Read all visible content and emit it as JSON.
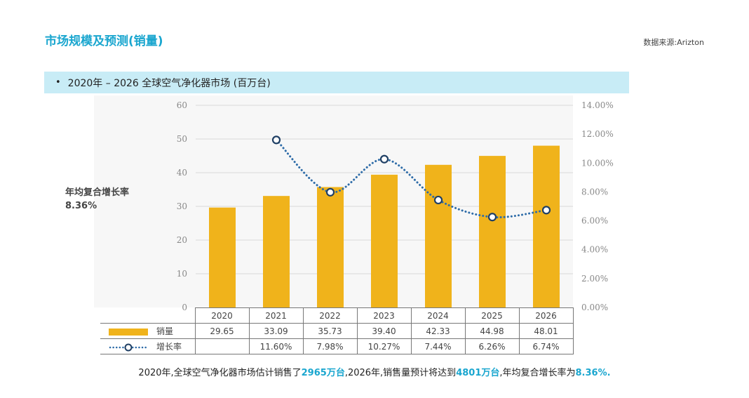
{
  "header": {
    "title": "市场规模及预测(销量)",
    "source": "数据来源:Arizton"
  },
  "subtitle": {
    "bullet": "•",
    "text": "2020年 – 2026 全球空气净化器市场 (百万台)"
  },
  "cagr": {
    "label": "年均复合增长率",
    "value": "8.36%"
  },
  "summary": {
    "part1": "2020年,全球空气净化器市场估计销售了",
    "hl1": "2965万台",
    "part2": ",2026年,销售量预计将达到",
    "hl2": "4801万台",
    "part3": ",年均复合增长率为",
    "hl3": "8.36%."
  },
  "colors": {
    "bar": "#f0b31b",
    "line": "#2e6ca8",
    "marker_stroke": "#1f3f64",
    "axis_text": "#888888",
    "grid": "#d8d8d8"
  },
  "chart_data": {
    "type": "bar",
    "categories": [
      "2020",
      "2021",
      "2022",
      "2023",
      "2024",
      "2025",
      "2026"
    ],
    "series": [
      {
        "name": "销量",
        "type": "bar",
        "axis": "left",
        "values": [
          29.65,
          33.09,
          35.73,
          39.4,
          42.33,
          44.98,
          48.01
        ],
        "labels": [
          "29.65",
          "33.09",
          "35.73",
          "39.40",
          "42.33",
          "44.98",
          "48.01"
        ]
      },
      {
        "name": "增长率",
        "type": "line",
        "axis": "right",
        "values": [
          null,
          11.6,
          7.98,
          10.27,
          7.44,
          6.26,
          6.74
        ],
        "labels": [
          "",
          "11.60%",
          "7.98%",
          "10.27%",
          "7.44%",
          "6.26%",
          "6.74%"
        ]
      }
    ],
    "y_left": {
      "ylim": [
        0,
        60
      ],
      "ticks": [
        "0",
        "10",
        "20",
        "30",
        "40",
        "50",
        "60"
      ],
      "tick_values": [
        0,
        10,
        20,
        30,
        40,
        50,
        60
      ]
    },
    "y_right": {
      "ylim": [
        0,
        14
      ],
      "ticks": [
        "0.00%",
        "2.00%",
        "4.00%",
        "6.00%",
        "8.00%",
        "10.00%",
        "12.00%",
        "14.00%"
      ],
      "tick_values": [
        0,
        2,
        4,
        6,
        8,
        10,
        12,
        14
      ]
    },
    "grid": true,
    "legend": "bottom-table"
  }
}
